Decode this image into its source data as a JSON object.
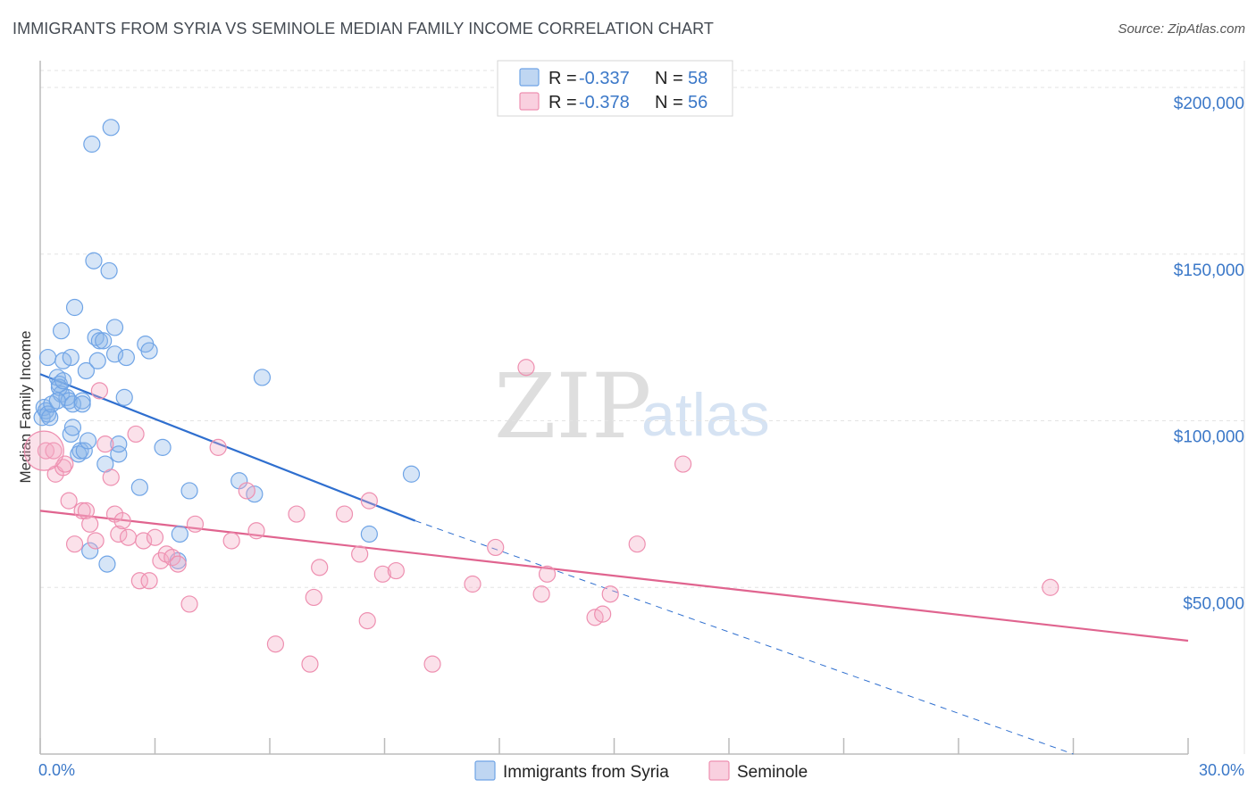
{
  "title": "IMMIGRANTS FROM SYRIA VS SEMINOLE MEDIAN FAMILY INCOME CORRELATION CHART",
  "source": "Source: ZipAtlas.com",
  "watermark": {
    "part1": "ZIP",
    "part2": "atlas"
  },
  "colors": {
    "syria": "#6fa4e6",
    "syria_fill": "rgba(138,180,232,0.35)",
    "syria_line": "#2f6fcf",
    "seminole": "#ee8fb0",
    "seminole_fill": "rgba(244,170,196,0.35)",
    "seminole_line": "#e0648f",
    "axis_label": "#3b78c8",
    "grid": "#e3e3e3"
  },
  "legend": {
    "rows": [
      {
        "r_label": "R = ",
        "r_value": "-0.337",
        "n_label": "N = ",
        "n_value": "58"
      },
      {
        "r_label": "R = ",
        "r_value": "-0.378",
        "n_label": "N = ",
        "n_value": "56"
      }
    ]
  },
  "bottom_legend": [
    "Immigrants from Syria",
    "Seminole"
  ],
  "chart_data": {
    "type": "scatter",
    "title": "IMMIGRANTS FROM SYRIA VS SEMINOLE MEDIAN FAMILY INCOME CORRELATION CHART",
    "xlabel": "",
    "ylabel": "Median Family Income",
    "xlim": [
      0,
      30
    ],
    "ylim": [
      0,
      207500
    ],
    "x_tick_labels": [
      "0.0%",
      "30.0%"
    ],
    "y_ticks": [
      50000,
      100000,
      150000,
      200000
    ],
    "y_tick_labels": [
      "$50,000",
      "$100,000",
      "$150,000",
      "$200,000"
    ],
    "series": [
      {
        "name": "Immigrants from Syria",
        "r": -0.337,
        "n": 58,
        "trend": {
          "x0": 0,
          "y0": 114000,
          "x1": 9.8,
          "y1": 70000,
          "dash_x1": 27,
          "dash_y1": 0
        },
        "points": [
          [
            0.05,
            101000
          ],
          [
            0.1,
            104000
          ],
          [
            0.15,
            103000
          ],
          [
            0.2,
            102000
          ],
          [
            0.25,
            101000
          ],
          [
            0.3,
            105000
          ],
          [
            0.2,
            119000
          ],
          [
            0.45,
            113000
          ],
          [
            0.5,
            111000
          ],
          [
            0.55,
            108000
          ],
          [
            0.5,
            110000
          ],
          [
            0.6,
            118000
          ],
          [
            0.55,
            127000
          ],
          [
            0.6,
            112000
          ],
          [
            0.7,
            107000
          ],
          [
            0.75,
            106000
          ],
          [
            0.8,
            119000
          ],
          [
            0.85,
            105000
          ],
          [
            0.8,
            96000
          ],
          [
            0.85,
            98000
          ],
          [
            0.9,
            134000
          ],
          [
            1.0,
            90000
          ],
          [
            1.05,
            91000
          ],
          [
            1.1,
            106000
          ],
          [
            1.1,
            105000
          ],
          [
            1.15,
            91000
          ],
          [
            1.2,
            115000
          ],
          [
            1.25,
            94000
          ],
          [
            1.3,
            61000
          ],
          [
            1.35,
            183000
          ],
          [
            1.4,
            148000
          ],
          [
            1.45,
            125000
          ],
          [
            1.55,
            124000
          ],
          [
            1.5,
            118000
          ],
          [
            1.65,
            124000
          ],
          [
            1.7,
            87000
          ],
          [
            1.75,
            57000
          ],
          [
            1.8,
            145000
          ],
          [
            1.85,
            188000
          ],
          [
            1.95,
            128000
          ],
          [
            1.95,
            120000
          ],
          [
            2.05,
            90000
          ],
          [
            2.05,
            93000
          ],
          [
            2.2,
            107000
          ],
          [
            2.25,
            119000
          ],
          [
            2.6,
            80000
          ],
          [
            2.75,
            123000
          ],
          [
            2.85,
            121000
          ],
          [
            3.2,
            92000
          ],
          [
            3.6,
            58000
          ],
          [
            3.65,
            66000
          ],
          [
            3.9,
            79000
          ],
          [
            5.2,
            82000
          ],
          [
            5.6,
            78000
          ],
          [
            5.8,
            113000
          ],
          [
            8.6,
            66000
          ],
          [
            9.7,
            84000
          ],
          [
            0.45,
            106000
          ]
        ]
      },
      {
        "name": "Seminole",
        "r": -0.378,
        "n": 56,
        "trend": {
          "x0": 0,
          "y0": 73000,
          "x1": 30,
          "y1": 34000
        },
        "points": [
          [
            0.15,
            91000
          ],
          [
            0.35,
            91000
          ],
          [
            0.4,
            84000
          ],
          [
            0.6,
            86000
          ],
          [
            0.65,
            87000
          ],
          [
            0.75,
            76000
          ],
          [
            0.9,
            63000
          ],
          [
            1.1,
            73000
          ],
          [
            1.2,
            73000
          ],
          [
            1.3,
            69000
          ],
          [
            1.45,
            64000
          ],
          [
            1.55,
            109000
          ],
          [
            1.7,
            93000
          ],
          [
            1.85,
            83000
          ],
          [
            1.95,
            72000
          ],
          [
            2.05,
            66000
          ],
          [
            2.15,
            70000
          ],
          [
            2.3,
            65000
          ],
          [
            2.5,
            96000
          ],
          [
            2.6,
            52000
          ],
          [
            2.7,
            64000
          ],
          [
            2.85,
            52000
          ],
          [
            3.0,
            65000
          ],
          [
            3.15,
            58000
          ],
          [
            3.3,
            60000
          ],
          [
            3.45,
            59000
          ],
          [
            3.6,
            57000
          ],
          [
            3.9,
            45000
          ],
          [
            4.05,
            69000
          ],
          [
            4.65,
            92000
          ],
          [
            5.0,
            64000
          ],
          [
            5.4,
            79000
          ],
          [
            5.65,
            67000
          ],
          [
            6.15,
            33000
          ],
          [
            6.7,
            72000
          ],
          [
            7.05,
            27000
          ],
          [
            7.15,
            47000
          ],
          [
            7.3,
            56000
          ],
          [
            7.95,
            72000
          ],
          [
            8.35,
            60000
          ],
          [
            8.55,
            40000
          ],
          [
            8.6,
            76000
          ],
          [
            8.95,
            54000
          ],
          [
            9.3,
            55000
          ],
          [
            10.25,
            27000
          ],
          [
            11.3,
            51000
          ],
          [
            11.9,
            62000
          ],
          [
            12.7,
            116000
          ],
          [
            13.1,
            48000
          ],
          [
            13.25,
            54000
          ],
          [
            14.5,
            41000
          ],
          [
            14.7,
            42000
          ],
          [
            14.9,
            48000
          ],
          [
            15.6,
            63000
          ],
          [
            16.8,
            87000
          ],
          [
            26.4,
            50000
          ]
        ]
      }
    ]
  }
}
